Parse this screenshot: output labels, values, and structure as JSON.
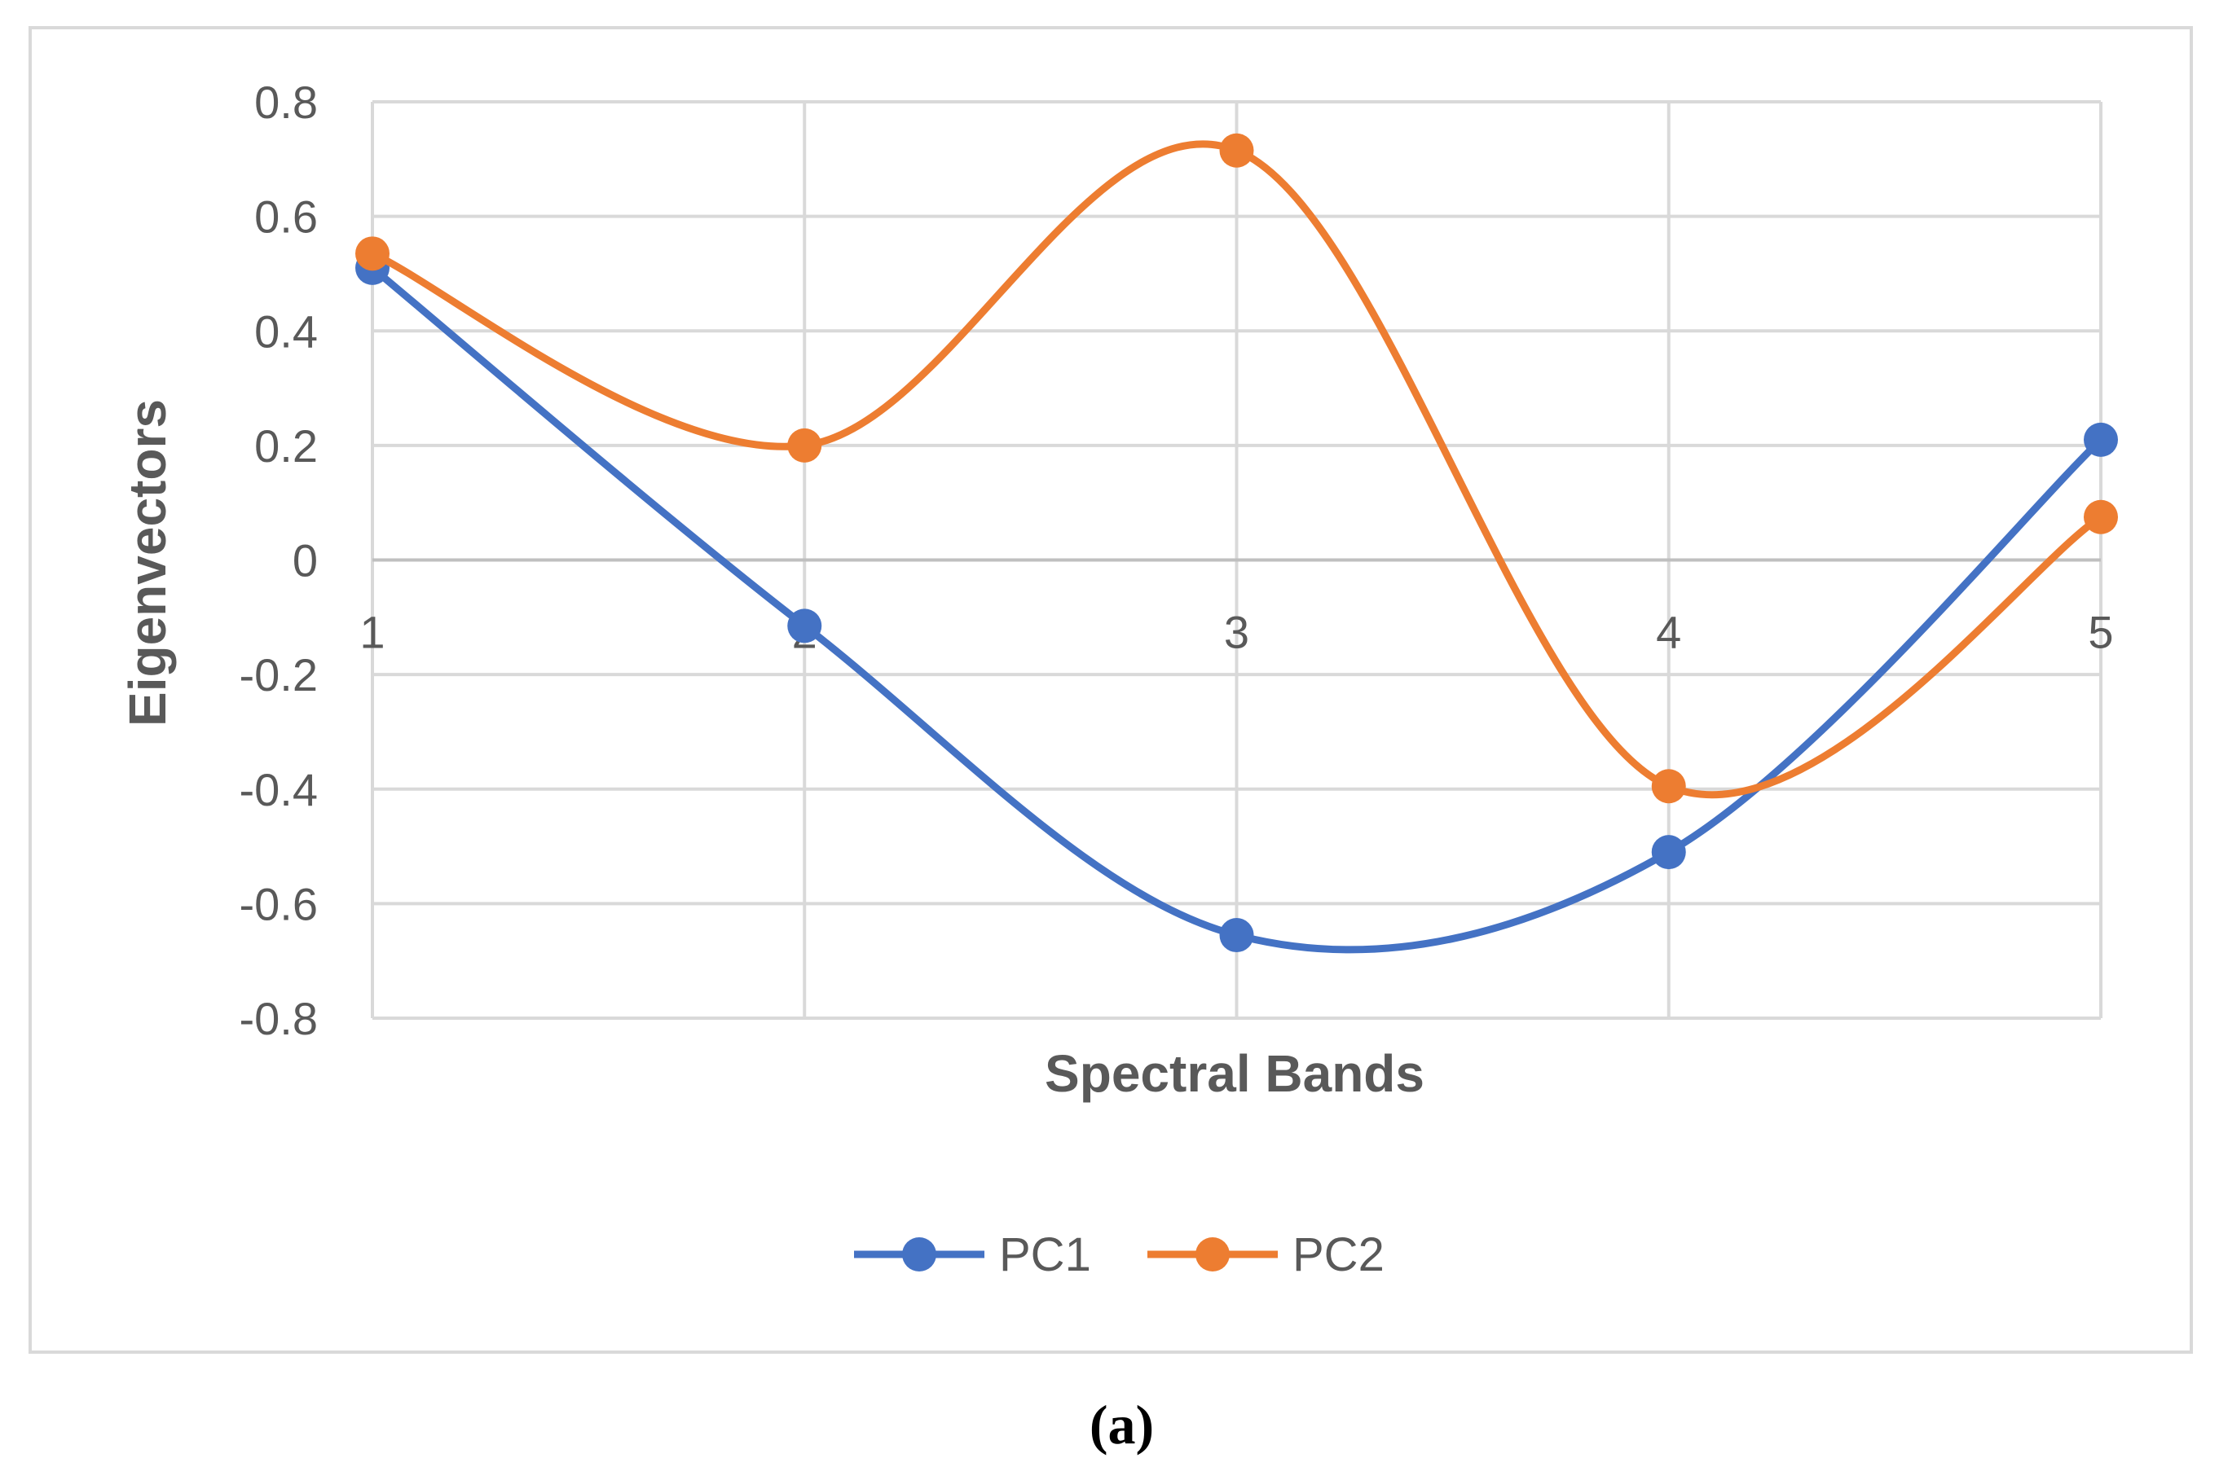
{
  "chart_data": {
    "type": "line",
    "smooth": true,
    "x": [
      1,
      2,
      3,
      4,
      5
    ],
    "series": [
      {
        "name": "PC1",
        "values": [
          0.51,
          -0.115,
          -0.655,
          -0.51,
          0.21
        ],
        "color": "#4472c4"
      },
      {
        "name": "PC2",
        "values": [
          0.535,
          0.2,
          0.715,
          -0.395,
          0.075
        ],
        "color": "#ed7d31"
      }
    ],
    "xlabel": "Spectral Bands",
    "ylabel": "Eigenvectors",
    "ylim": [
      -0.8,
      0.8
    ],
    "yticks": [
      "0.8",
      "0.6",
      "0.4",
      "0.2",
      "0",
      "-0.2",
      "-0.4",
      "-0.6",
      "-0.8"
    ],
    "xticks": [
      "1",
      "2",
      "3",
      "4",
      "5"
    ],
    "grid": true,
    "legend_position": "bottom"
  },
  "caption": "(a)"
}
